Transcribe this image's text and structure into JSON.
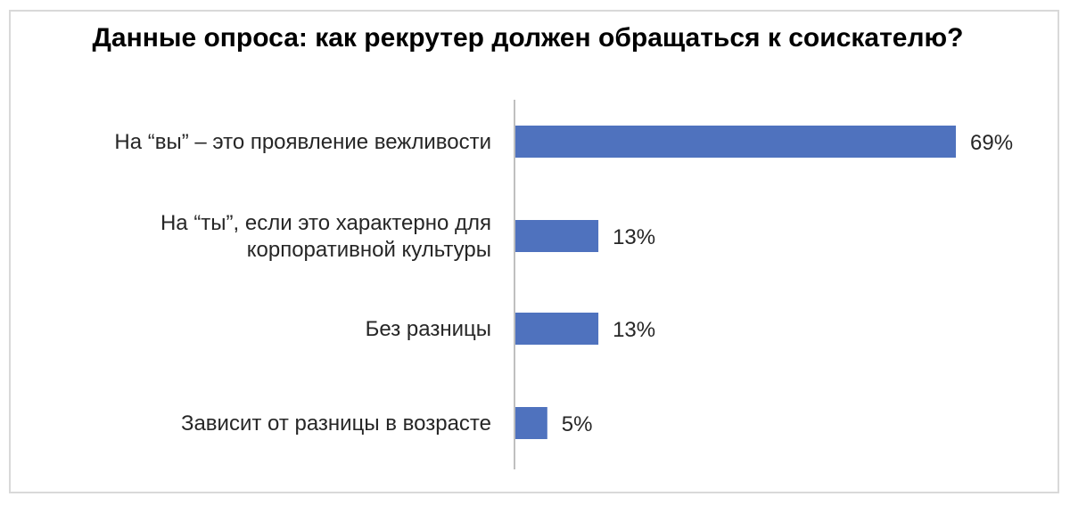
{
  "chart_data": {
    "type": "bar",
    "orientation": "horizontal",
    "title": "Данные опроса: как рекрутер должен обращаться к соискателю?",
    "categories": [
      "На “вы” – это проявление вежливости",
      "На “ты”, если это характерно для корпоративной культуры",
      "Без разницы",
      "Зависит от разницы в возрасте"
    ],
    "category_lines": [
      [
        "На “вы” – это проявление вежливости"
      ],
      [
        "На “ты”, если это характерно для",
        "корпоративной культуры"
      ],
      [
        "Без разницы"
      ],
      [
        "Зависит от разницы в возрасте"
      ]
    ],
    "values": [
      69,
      13,
      13,
      5
    ],
    "data_labels": [
      "69%",
      "13%",
      "13%",
      "5%"
    ],
    "unit": "%",
    "xlim": [
      0,
      69
    ],
    "grid": false,
    "legend": "none",
    "bar_color": "#4f72be",
    "axis_color": "#bfbfbf"
  }
}
